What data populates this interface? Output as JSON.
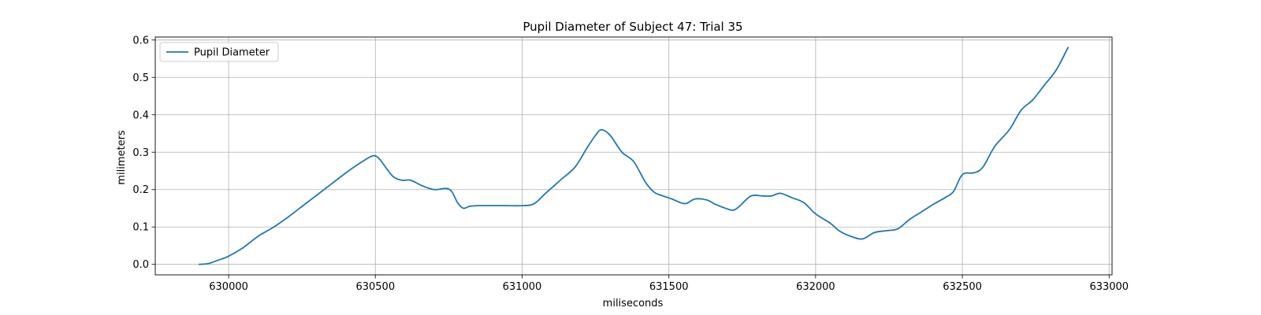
{
  "chart_data": {
    "type": "line",
    "title": "Pupil Diameter of Subject 47: Trial 35",
    "xlabel": "miliseconds",
    "ylabel": "milimeters",
    "xlim": [
      629750,
      633010
    ],
    "ylim": [
      -0.028,
      0.608
    ],
    "xticks": [
      630000,
      630500,
      631000,
      631500,
      632000,
      632500,
      633000
    ],
    "yticks": [
      0.0,
      0.1,
      0.2,
      0.3,
      0.4,
      0.5,
      0.6
    ],
    "xtick_labels": [
      "630000",
      "630500",
      "631000",
      "631500",
      "632000",
      "632500",
      "633000"
    ],
    "ytick_labels": [
      "0.0",
      "0.1",
      "0.2",
      "0.3",
      "0.4",
      "0.5",
      "0.6"
    ],
    "grid": true,
    "legend_position": "upper-left",
    "series": [
      {
        "name": "Pupil Diameter",
        "color": "#1f77b4",
        "points": [
          [
            629900,
            0.0
          ],
          [
            629930,
            0.002
          ],
          [
            629960,
            0.01
          ],
          [
            630000,
            0.022
          ],
          [
            630050,
            0.045
          ],
          [
            630100,
            0.075
          ],
          [
            630150,
            0.098
          ],
          [
            630200,
            0.125
          ],
          [
            630250,
            0.155
          ],
          [
            630300,
            0.185
          ],
          [
            630350,
            0.215
          ],
          [
            630400,
            0.245
          ],
          [
            630450,
            0.272
          ],
          [
            630490,
            0.29
          ],
          [
            630510,
            0.285
          ],
          [
            630530,
            0.265
          ],
          [
            630560,
            0.235
          ],
          [
            630590,
            0.225
          ],
          [
            630620,
            0.225
          ],
          [
            630660,
            0.21
          ],
          [
            630700,
            0.2
          ],
          [
            630740,
            0.203
          ],
          [
            630760,
            0.195
          ],
          [
            630780,
            0.165
          ],
          [
            630800,
            0.15
          ],
          [
            630820,
            0.155
          ],
          [
            630850,
            0.157
          ],
          [
            630900,
            0.157
          ],
          [
            630950,
            0.157
          ],
          [
            631000,
            0.157
          ],
          [
            631040,
            0.162
          ],
          [
            631080,
            0.19
          ],
          [
            631130,
            0.225
          ],
          [
            631180,
            0.26
          ],
          [
            631220,
            0.31
          ],
          [
            631250,
            0.345
          ],
          [
            631270,
            0.36
          ],
          [
            631300,
            0.345
          ],
          [
            631340,
            0.3
          ],
          [
            631380,
            0.275
          ],
          [
            631420,
            0.22
          ],
          [
            631450,
            0.193
          ],
          [
            631480,
            0.183
          ],
          [
            631510,
            0.175
          ],
          [
            631540,
            0.165
          ],
          [
            631560,
            0.163
          ],
          [
            631590,
            0.175
          ],
          [
            631630,
            0.172
          ],
          [
            631660,
            0.16
          ],
          [
            631700,
            0.148
          ],
          [
            631720,
            0.145
          ],
          [
            631740,
            0.155
          ],
          [
            631780,
            0.183
          ],
          [
            631820,
            0.183
          ],
          [
            631850,
            0.183
          ],
          [
            631880,
            0.19
          ],
          [
            631920,
            0.178
          ],
          [
            631960,
            0.165
          ],
          [
            632000,
            0.135
          ],
          [
            632050,
            0.11
          ],
          [
            632080,
            0.09
          ],
          [
            632120,
            0.075
          ],
          [
            632160,
            0.068
          ],
          [
            632200,
            0.085
          ],
          [
            632240,
            0.09
          ],
          [
            632280,
            0.095
          ],
          [
            632320,
            0.12
          ],
          [
            632360,
            0.14
          ],
          [
            632400,
            0.16
          ],
          [
            632440,
            0.178
          ],
          [
            632470,
            0.195
          ],
          [
            632500,
            0.24
          ],
          [
            632540,
            0.245
          ],
          [
            632570,
            0.26
          ],
          [
            632610,
            0.315
          ],
          [
            632660,
            0.36
          ],
          [
            632700,
            0.412
          ],
          [
            632740,
            0.44
          ],
          [
            632780,
            0.48
          ],
          [
            632820,
            0.52
          ],
          [
            632860,
            0.58
          ]
        ]
      }
    ]
  }
}
